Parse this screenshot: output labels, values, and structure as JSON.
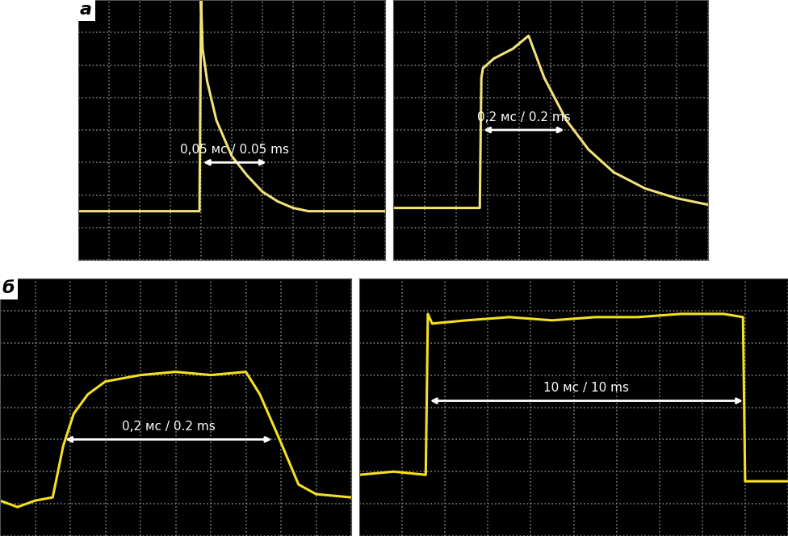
{
  "chart_data": [
    {
      "type": "line",
      "title": "а",
      "color": "#f2e27a",
      "grid": true,
      "tick_labels": false,
      "xlim": [
        0,
        10
      ],
      "ylim": [
        0,
        8
      ],
      "xticks": [
        0,
        1,
        2,
        3,
        4,
        5,
        6,
        7,
        8,
        9,
        10
      ],
      "yticks": [
        0,
        1,
        2,
        3,
        4,
        5,
        6,
        7,
        8
      ],
      "x": [
        0,
        1,
        2,
        3,
        3.95,
        4.0,
        4.05,
        4.2,
        4.5,
        5,
        5.5,
        6,
        6.5,
        7,
        7.5,
        8,
        9,
        10
      ],
      "values": [
        1.5,
        1.5,
        1.5,
        1.5,
        1.5,
        8.0,
        6.5,
        5.5,
        4.3,
        3.2,
        2.6,
        2.1,
        1.8,
        1.6,
        1.5,
        1.5,
        1.5,
        1.5
      ],
      "annotations": [
        {
          "text": "0,05 мс / 0.05 ms",
          "x": [
            4.0,
            6.2
          ],
          "y": 3.0
        }
      ]
    },
    {
      "type": "line",
      "color": "#f2e27a",
      "grid": true,
      "tick_labels": false,
      "xlim": [
        0,
        10
      ],
      "ylim": [
        0,
        8
      ],
      "xticks": [
        0,
        1,
        2,
        3,
        4,
        5,
        6,
        7,
        8,
        9,
        10
      ],
      "yticks": [
        0,
        1,
        2,
        3,
        4,
        5,
        6,
        7,
        8
      ],
      "x": [
        0,
        1,
        2,
        2.75,
        2.8,
        2.85,
        3.2,
        3.8,
        4.3,
        4.8,
        5.5,
        6.2,
        7,
        8,
        9,
        10
      ],
      "values": [
        1.6,
        1.6,
        1.6,
        1.6,
        5.6,
        5.9,
        6.2,
        6.5,
        6.9,
        5.6,
        4.3,
        3.4,
        2.7,
        2.2,
        1.9,
        1.7
      ],
      "annotations": [
        {
          "text": "0,2 мс / 0.2 ms",
          "x": [
            2.8,
            5.5
          ],
          "y": 4.0
        }
      ]
    },
    {
      "type": "line",
      "title": "б",
      "color": "#f5e020",
      "grid": true,
      "tick_labels": false,
      "xlim": [
        0,
        10
      ],
      "ylim": [
        0,
        8
      ],
      "xticks": [
        0,
        1,
        2,
        3,
        4,
        5,
        6,
        7,
        8,
        9,
        10
      ],
      "yticks": [
        0,
        1,
        2,
        3,
        4,
        5,
        6,
        7,
        8
      ],
      "x": [
        0,
        0.5,
        1.0,
        1.5,
        1.8,
        2.1,
        2.5,
        3.0,
        4.0,
        5.0,
        6.0,
        7.0,
        7.4,
        8.0,
        8.5,
        9.0,
        10
      ],
      "values": [
        1.1,
        0.9,
        1.1,
        1.2,
        2.8,
        3.8,
        4.4,
        4.8,
        5.0,
        5.1,
        5.0,
        5.1,
        4.4,
        2.9,
        1.6,
        1.3,
        1.2
      ],
      "annotations": [
        {
          "text": "0,2 мс / 0.2 ms",
          "x": [
            1.8,
            7.8
          ],
          "y": 3.0
        }
      ]
    },
    {
      "type": "line",
      "color": "#f5e020",
      "grid": true,
      "tick_labels": false,
      "xlim": [
        0,
        10
      ],
      "ylim": [
        0,
        8
      ],
      "xticks": [
        0,
        1,
        2,
        3,
        4,
        5,
        6,
        7,
        8,
        9,
        10
      ],
      "yticks": [
        0,
        1,
        2,
        3,
        4,
        5,
        6,
        7,
        8
      ],
      "x": [
        0,
        0.8,
        1.55,
        1.6,
        1.7,
        2.5,
        3.5,
        4.5,
        5.5,
        6.5,
        7.5,
        8.5,
        8.95,
        9.0,
        9.5,
        10
      ],
      "values": [
        1.9,
        2.0,
        1.9,
        6.9,
        6.6,
        6.7,
        6.8,
        6.7,
        6.8,
        6.8,
        6.9,
        6.9,
        6.8,
        1.7,
        1.7,
        1.7
      ],
      "annotations": [
        {
          "text": "10 мс / 10 ms",
          "x": [
            1.6,
            9.0
          ],
          "y": 4.2
        }
      ]
    }
  ]
}
